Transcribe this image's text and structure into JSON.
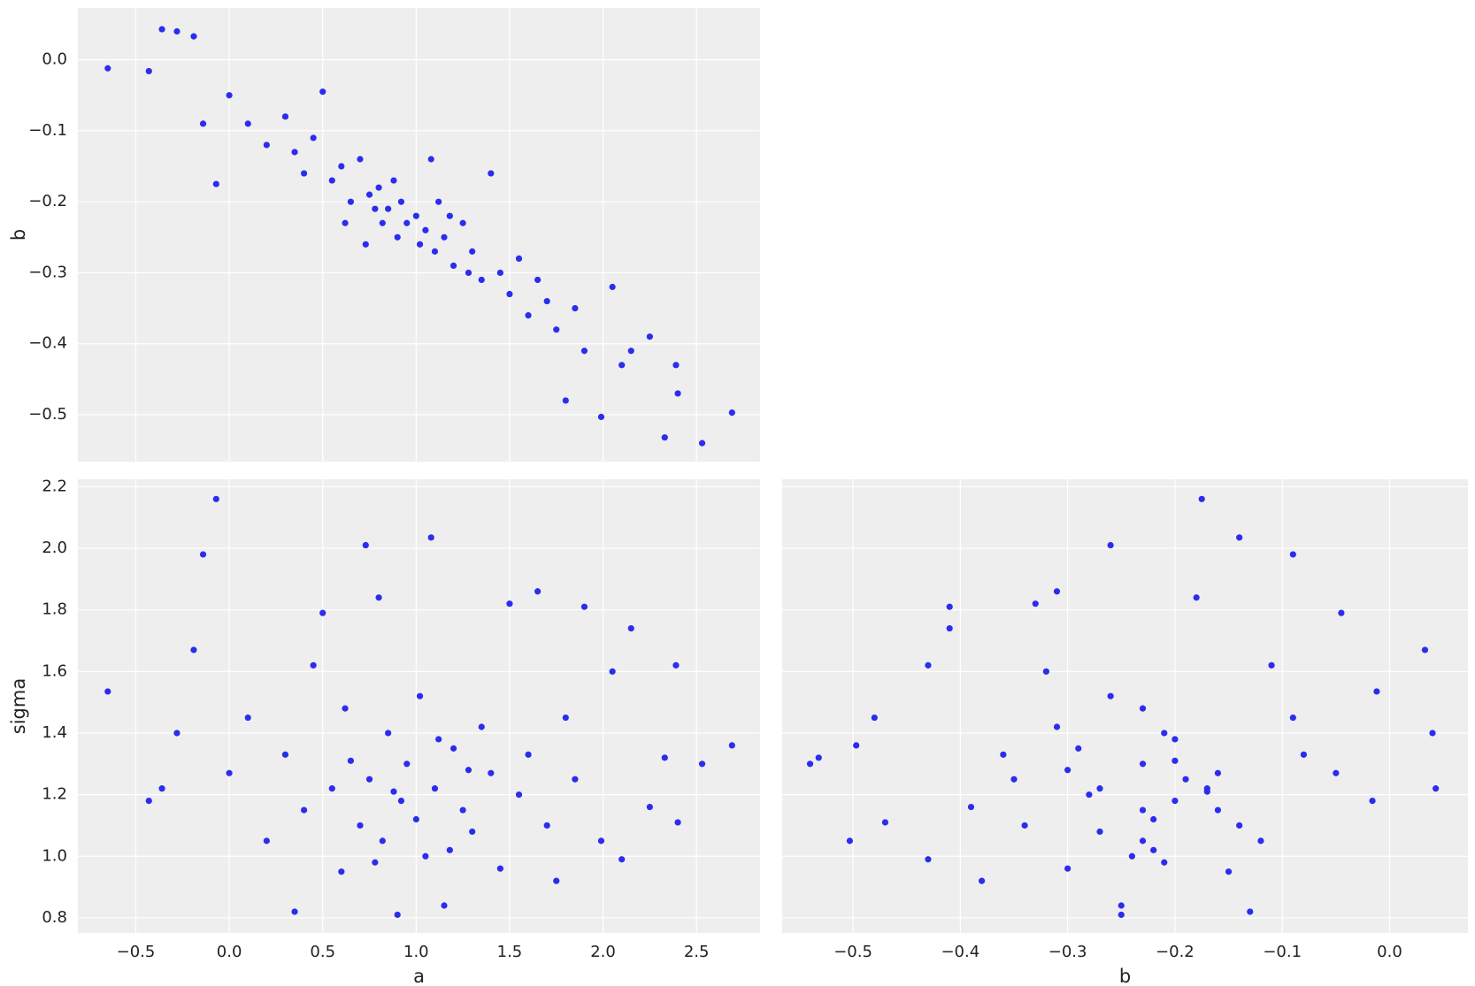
{
  "chart_data": [
    {
      "type": "scatter",
      "ylabel": "b",
      "color": "#2a2eec",
      "grid": true,
      "show_xtick_labels": false,
      "show_ytick_labels": true,
      "xlim": [
        -0.81,
        2.84
      ],
      "ylim": [
        -0.566,
        0.073
      ],
      "xticks": [
        -0.5,
        0,
        0.5,
        1,
        1.5,
        2,
        2.5
      ],
      "yticks": [
        {
          "value": 0,
          "label": "0.0"
        },
        {
          "value": -0.1,
          "label": "−0.1"
        },
        {
          "value": -0.2,
          "label": "−0.2"
        },
        {
          "value": -0.3,
          "label": "−0.3"
        },
        {
          "value": -0.4,
          "label": "−0.4"
        },
        {
          "value": -0.5,
          "label": "−0.5"
        }
      ],
      "x": [
        -0.65,
        -0.43,
        -0.36,
        -0.28,
        -0.19,
        -0.07,
        -0.14,
        0.0,
        0.1,
        0.2,
        0.3,
        0.35,
        0.4,
        0.5,
        0.55,
        0.6,
        0.65,
        0.7,
        0.73,
        0.75,
        0.8,
        0.82,
        0.85,
        0.9,
        0.92,
        0.95,
        1.0,
        1.02,
        1.05,
        1.08,
        1.1,
        1.15,
        1.2,
        1.25,
        1.3,
        1.35,
        1.4,
        1.45,
        1.5,
        1.55,
        1.6,
        1.65,
        1.7,
        1.75,
        1.8,
        1.85,
        1.9,
        1.99,
        2.05,
        2.1,
        2.15,
        2.25,
        2.33,
        2.39,
        2.4,
        2.53,
        2.69,
        0.45,
        0.62,
        1.12,
        0.78,
        1.28,
        0.88,
        1.18
      ],
      "values": [
        -0.012,
        -0.016,
        0.043,
        0.04,
        0.033,
        -0.175,
        -0.09,
        -0.05,
        -0.09,
        -0.12,
        -0.08,
        -0.13,
        -0.16,
        -0.045,
        -0.17,
        -0.15,
        -0.2,
        -0.14,
        -0.26,
        -0.19,
        -0.18,
        -0.23,
        -0.21,
        -0.25,
        -0.2,
        -0.23,
        -0.22,
        -0.26,
        -0.24,
        -0.14,
        -0.27,
        -0.25,
        -0.29,
        -0.23,
        -0.27,
        -0.31,
        -0.16,
        -0.3,
        -0.33,
        -0.28,
        -0.36,
        -0.31,
        -0.34,
        -0.38,
        -0.48,
        -0.35,
        -0.41,
        -0.503,
        -0.32,
        -0.43,
        -0.41,
        -0.39,
        -0.532,
        -0.43,
        -0.47,
        -0.54,
        -0.497,
        -0.11,
        -0.23,
        -0.2,
        -0.21,
        -0.3,
        -0.17,
        -0.22
      ]
    },
    {
      "type": "scatter",
      "xlabel": "a",
      "ylabel": "sigma",
      "color": "#2a2eec",
      "grid": true,
      "show_xtick_labels": true,
      "show_ytick_labels": true,
      "xlim": [
        -0.81,
        2.84
      ],
      "ylim": [
        0.751,
        2.224
      ],
      "xticks": [
        {
          "value": -0.5,
          "label": "−0.5"
        },
        {
          "value": 0,
          "label": "0.0"
        },
        0.5,
        {
          "value": 1,
          "label": "1.0"
        },
        1.5,
        {
          "value": 2,
          "label": "2.0"
        },
        2.5
      ],
      "yticks": [
        0.8,
        {
          "value": 1,
          "label": "1.0"
        },
        1.2,
        1.4,
        1.6,
        1.8,
        {
          "value": 2,
          "label": "2.0"
        },
        2.2
      ],
      "x": [
        -0.65,
        -0.43,
        -0.36,
        -0.28,
        -0.19,
        -0.07,
        -0.14,
        0.0,
        0.1,
        0.2,
        0.3,
        0.35,
        0.4,
        0.5,
        0.55,
        0.6,
        0.65,
        0.7,
        0.73,
        0.75,
        0.8,
        0.82,
        0.85,
        0.9,
        0.92,
        0.95,
        1.0,
        1.02,
        1.05,
        1.08,
        1.1,
        1.15,
        1.2,
        1.25,
        1.3,
        1.35,
        1.4,
        1.45,
        1.5,
        1.55,
        1.6,
        1.65,
        1.7,
        1.75,
        1.8,
        1.85,
        1.9,
        1.99,
        2.05,
        2.1,
        2.15,
        2.25,
        2.33,
        2.39,
        2.4,
        2.53,
        2.69,
        0.45,
        0.62,
        1.12,
        0.78,
        1.28,
        0.88,
        1.18
      ],
      "values": [
        1.535,
        1.18,
        1.22,
        1.4,
        1.67,
        2.16,
        1.98,
        1.27,
        1.45,
        1.05,
        1.33,
        0.82,
        1.15,
        1.79,
        1.22,
        0.95,
        1.31,
        1.1,
        2.01,
        1.25,
        1.84,
        1.05,
        1.4,
        0.81,
        1.18,
        1.3,
        1.12,
        1.52,
        1.0,
        2.035,
        1.22,
        0.84,
        1.35,
        1.15,
        1.08,
        1.42,
        1.27,
        0.96,
        1.82,
        1.2,
        1.33,
        1.86,
        1.1,
        0.92,
        1.45,
        1.25,
        1.81,
        1.05,
        1.6,
        0.99,
        1.74,
        1.16,
        1.32,
        1.62,
        1.11,
        1.3,
        1.36,
        1.62,
        1.48,
        1.38,
        0.98,
        1.28,
        1.21,
        1.02
      ]
    },
    {
      "type": "scatter",
      "xlabel": "b",
      "color": "#2a2eec",
      "grid": true,
      "show_xtick_labels": true,
      "show_ytick_labels": false,
      "xlim": [
        -0.566,
        0.073
      ],
      "ylim": [
        0.751,
        2.224
      ],
      "xticks": [
        {
          "value": -0.5,
          "label": "−0.5"
        },
        {
          "value": -0.4,
          "label": "−0.4"
        },
        {
          "value": -0.3,
          "label": "−0.3"
        },
        {
          "value": -0.2,
          "label": "−0.2"
        },
        {
          "value": -0.1,
          "label": "−0.1"
        },
        {
          "value": 0,
          "label": "0.0"
        }
      ],
      "yticks": [
        0.8,
        1,
        1.2,
        1.4,
        1.6,
        1.8,
        2,
        2.2
      ],
      "x": [
        -0.012,
        -0.016,
        0.043,
        0.04,
        0.033,
        -0.175,
        -0.09,
        -0.05,
        -0.09,
        -0.12,
        -0.08,
        -0.13,
        -0.16,
        -0.045,
        -0.17,
        -0.15,
        -0.2,
        -0.14,
        -0.26,
        -0.19,
        -0.18,
        -0.23,
        -0.21,
        -0.25,
        -0.2,
        -0.23,
        -0.22,
        -0.26,
        -0.24,
        -0.14,
        -0.27,
        -0.25,
        -0.29,
        -0.23,
        -0.27,
        -0.31,
        -0.16,
        -0.3,
        -0.33,
        -0.28,
        -0.36,
        -0.31,
        -0.34,
        -0.38,
        -0.48,
        -0.35,
        -0.41,
        -0.503,
        -0.32,
        -0.43,
        -0.41,
        -0.39,
        -0.532,
        -0.43,
        -0.47,
        -0.54,
        -0.497,
        -0.11,
        -0.23,
        -0.2,
        -0.21,
        -0.3,
        -0.17,
        -0.22
      ],
      "values": [
        1.535,
        1.18,
        1.22,
        1.4,
        1.67,
        2.16,
        1.98,
        1.27,
        1.45,
        1.05,
        1.33,
        0.82,
        1.15,
        1.79,
        1.22,
        0.95,
        1.31,
        1.1,
        2.01,
        1.25,
        1.84,
        1.05,
        1.4,
        0.81,
        1.18,
        1.3,
        1.12,
        1.52,
        1.0,
        2.035,
        1.22,
        0.84,
        1.35,
        1.15,
        1.08,
        1.42,
        1.27,
        0.96,
        1.82,
        1.2,
        1.33,
        1.86,
        1.1,
        0.92,
        1.45,
        1.25,
        1.81,
        1.05,
        1.6,
        0.99,
        1.74,
        1.16,
        1.32,
        1.62,
        1.11,
        1.3,
        1.36,
        1.62,
        1.48,
        1.38,
        0.98,
        1.28,
        1.21,
        1.02
      ]
    }
  ]
}
